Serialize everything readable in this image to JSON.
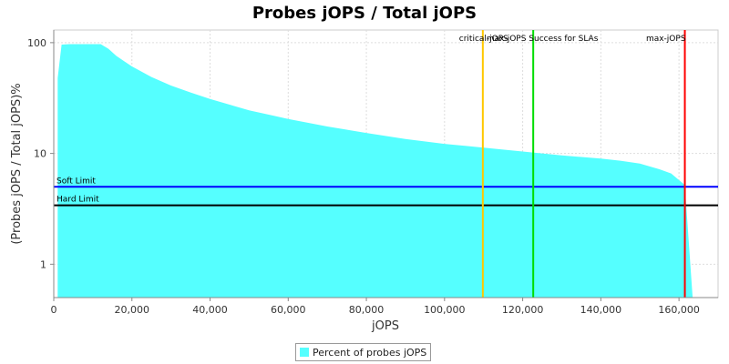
{
  "chart_data": {
    "type": "area",
    "title": "Probes jOPS / Total jOPS",
    "xlabel": "jOPS",
    "ylabel": "(Probes jOPS / Total jOPS)%",
    "y_scale": "log",
    "xlim": [
      0,
      170000
    ],
    "ylim": [
      0.5,
      130
    ],
    "x_ticks": [
      0,
      20000,
      40000,
      60000,
      80000,
      100000,
      120000,
      140000,
      160000
    ],
    "x_tick_labels": [
      "0",
      "20,000",
      "40,000",
      "60,000",
      "80,000",
      "100,000",
      "120,000",
      "140,000",
      "160,000"
    ],
    "y_ticks": [
      1,
      10,
      100
    ],
    "y_tick_labels": [
      "1",
      "10",
      "100"
    ],
    "grid": true,
    "legend_position": "bottom-center",
    "series": [
      {
        "name": "Percent of probes jOPS",
        "color": "#55ffff",
        "x": [
          1000,
          2000,
          4000,
          8000,
          12000,
          14000,
          16000,
          18000,
          20000,
          25000,
          30000,
          35000,
          40000,
          50000,
          60000,
          70000,
          80000,
          90000,
          100000,
          110000,
          120000,
          130000,
          140000,
          145000,
          150000,
          155000,
          158000,
          161500,
          163500
        ],
        "y": [
          48,
          96,
          97,
          97,
          97,
          88,
          76,
          68,
          61,
          49,
          41,
          35.5,
          31,
          24.5,
          20.5,
          17.5,
          15.3,
          13.5,
          12.2,
          11.3,
          10.4,
          9.6,
          9.0,
          8.6,
          8.1,
          7.2,
          6.6,
          5.2,
          0.5
        ]
      }
    ],
    "horizontal_lines": [
      {
        "label": "Soft Limit",
        "y": 5.0,
        "color": "#0000ff"
      },
      {
        "label": "Hard Limit",
        "y": 3.4,
        "color": "#000000"
      }
    ],
    "vertical_lines": [
      {
        "label": "critical-jOPS",
        "x": 109800,
        "color": "#ffc800"
      },
      {
        "label": "max-jOPS Success for SLAs",
        "x": 122700,
        "color": "#00dd00"
      },
      {
        "label": "max-jOPS",
        "x": 161500,
        "color": "#ff0000"
      }
    ]
  }
}
